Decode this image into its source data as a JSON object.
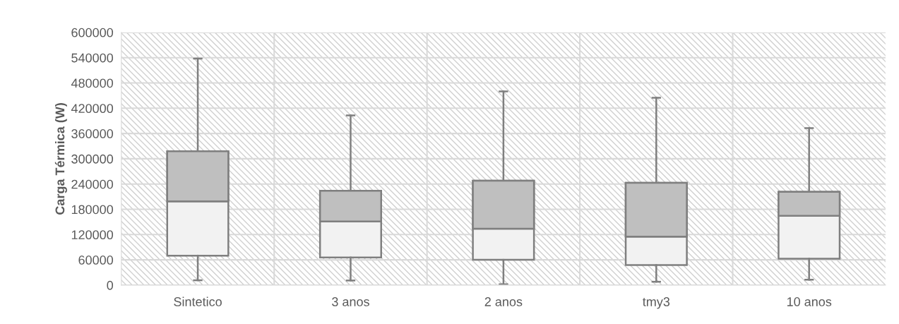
{
  "chart_data": {
    "type": "box",
    "ylabel": "Carga Térmica (W)",
    "categories": [
      "Sintetico",
      "3 anos",
      "2 anos",
      "tmy3",
      "10 anos"
    ],
    "series": [
      {
        "color": "#f2f2f2",
        "boxes": [
          {
            "low": 11500,
            "q1": 70000,
            "median": 199000,
            "q3": 318000,
            "high": 538000
          },
          {
            "low": 11000,
            "q1": 65500,
            "median": 151000,
            "q3": 224000,
            "high": 403000
          },
          {
            "low": 2000,
            "q1": 60000,
            "median": 134000,
            "q3": 248000,
            "high": 460000
          },
          {
            "low": 8000,
            "q1": 47600,
            "median": 115000,
            "q3": 243000,
            "high": 445000
          },
          {
            "low": 13000,
            "q1": 62600,
            "median": 164600,
            "q3": 221700,
            "high": 372600
          }
        ]
      }
    ],
    "colors": [
      "#bfbfbf",
      "#bfbfbf",
      "#bfbfbf",
      "#bfbfbf",
      "#bfbfbf"
    ],
    "ylim": [
      0,
      600000
    ],
    "yticks": [
      0,
      60000,
      120000,
      180000,
      240000,
      300000,
      360000,
      420000,
      480000,
      540000,
      600000
    ],
    "grid": true
  }
}
